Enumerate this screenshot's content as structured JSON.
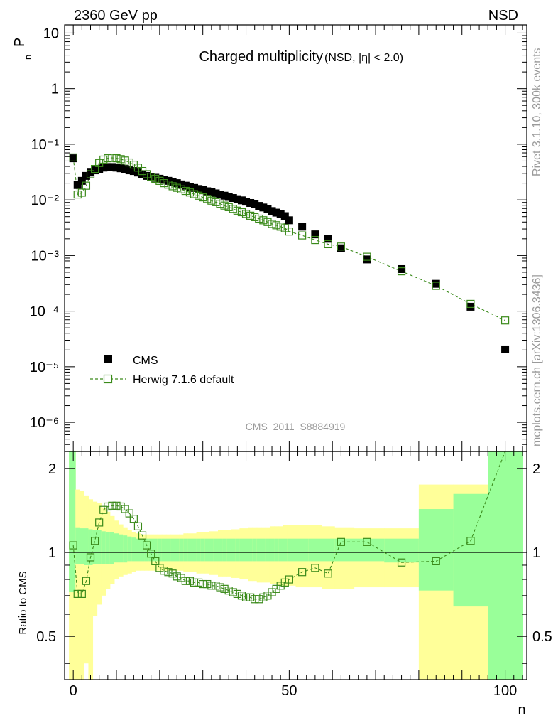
{
  "header": {
    "left": "2360 GeV pp",
    "right": "NSD"
  },
  "main_panel": {
    "title": "Charged multiplicity",
    "title_small": "(NSD, |η| < 2.0)",
    "ylabel": "P",
    "ylabel_sub": "n",
    "watermark": "CMS_2011_S8884919",
    "y_ticks": [
      {
        "value": 10,
        "label": "10"
      },
      {
        "value": 1,
        "label": "1"
      },
      {
        "value": 0.1,
        "label": "10⁻¹"
      },
      {
        "value": 0.01,
        "label": "10⁻²"
      },
      {
        "value": 0.001,
        "label": "10⁻³"
      },
      {
        "value": 0.0001,
        "label": "10⁻⁴"
      },
      {
        "value": 1e-05,
        "label": "10⁻⁵"
      },
      {
        "value": 1e-06,
        "label": "10⁻⁶"
      }
    ]
  },
  "ratio_panel": {
    "ylabel": "Ratio to CMS",
    "y_ticks": [
      {
        "value": 2,
        "label": "2"
      },
      {
        "value": 1,
        "label": "1"
      },
      {
        "value": 0.5,
        "label": "0.5"
      }
    ]
  },
  "x_axis": {
    "label": "n",
    "ticks": [
      {
        "value": 0,
        "label": "0"
      },
      {
        "value": 50,
        "label": "50"
      },
      {
        "value": 100,
        "label": "100"
      }
    ]
  },
  "legend": {
    "cms": "CMS",
    "herwig": "Herwig 7.1.6 default"
  },
  "side_text": {
    "rivet": "Rivet 3.1.10,  300k events",
    "mcplots": "mcplots.cern.ch [arXiv:1306.3436]"
  },
  "colors": {
    "cms": "#000000",
    "herwig": "#3a8a1a",
    "band_inner": "#99ff99",
    "band_outer": "#ffff99"
  },
  "chart_data": {
    "type": "scatter",
    "xlim": [
      -2,
      105
    ],
    "ylim_main": [
      3e-07,
      14
    ],
    "ylim_ratio": [
      0.35,
      2.3
    ],
    "log_y_main": true,
    "log_y_ratio": true,
    "x": [
      0,
      1,
      2,
      3,
      4,
      5,
      6,
      7,
      8,
      9,
      10,
      11,
      12,
      13,
      14,
      15,
      16,
      17,
      18,
      19,
      20,
      21,
      22,
      23,
      24,
      25,
      26,
      27,
      28,
      29,
      30,
      31,
      32,
      33,
      34,
      35,
      36,
      37,
      38,
      39,
      40,
      41,
      42,
      43,
      44,
      45,
      46,
      47,
      48,
      49,
      50,
      53,
      56,
      59,
      62,
      68,
      76,
      84,
      92,
      100
    ],
    "series": [
      {
        "name": "CMS",
        "values": [
          0.056,
          0.0185,
          0.022,
          0.027,
          0.031,
          0.034,
          0.036,
          0.038,
          0.039,
          0.039,
          0.038,
          0.037,
          0.036,
          0.034,
          0.033,
          0.031,
          0.029,
          0.027,
          0.026,
          0.025,
          0.024,
          0.023,
          0.022,
          0.021,
          0.02,
          0.019,
          0.018,
          0.0172,
          0.0164,
          0.0157,
          0.015,
          0.0143,
          0.0137,
          0.0131,
          0.0125,
          0.0119,
          0.0113,
          0.0108,
          0.0103,
          0.0098,
          0.0093,
          0.0088,
          0.0083,
          0.0078,
          0.0073,
          0.0068,
          0.0063,
          0.0059,
          0.0055,
          0.0051,
          0.0043,
          0.0033,
          0.0024,
          0.002,
          0.00135,
          0.00085,
          0.00057,
          0.00031,
          0.00012,
          2.05e-05
        ]
      },
      {
        "name": "Herwig 7.1.6 default",
        "values": [
          0.058,
          0.0125,
          0.0135,
          0.018,
          0.029,
          0.036,
          0.046,
          0.053,
          0.056,
          0.057,
          0.056,
          0.054,
          0.051,
          0.047,
          0.043,
          0.038,
          0.033,
          0.029,
          0.026,
          0.024,
          0.022,
          0.02,
          0.0188,
          0.0176,
          0.0165,
          0.0155,
          0.0145,
          0.0136,
          0.0127,
          0.0119,
          0.0111,
          0.0104,
          0.0097,
          0.0091,
          0.0085,
          0.0079,
          0.0074,
          0.0069,
          0.0064,
          0.006,
          0.0056,
          0.0052,
          0.0049,
          0.0046,
          0.0043,
          0.004,
          0.0037,
          0.0035,
          0.0033,
          0.0031,
          0.0027,
          0.0023,
          0.0019,
          0.0016,
          0.00145,
          0.00095,
          0.00052,
          0.000285,
          0.000135,
          6.8e-05
        ]
      }
    ],
    "ratio": [
      1.06,
      0.71,
      0.71,
      0.79,
      0.96,
      1.1,
      1.28,
      1.42,
      1.46,
      1.47,
      1.47,
      1.46,
      1.43,
      1.38,
      1.32,
      1.24,
      1.15,
      1.06,
      0.99,
      0.93,
      0.88,
      0.86,
      0.85,
      0.84,
      0.82,
      0.81,
      0.79,
      0.79,
      0.78,
      0.78,
      0.77,
      0.77,
      0.76,
      0.76,
      0.75,
      0.74,
      0.73,
      0.72,
      0.71,
      0.7,
      0.69,
      0.69,
      0.68,
      0.68,
      0.69,
      0.7,
      0.72,
      0.74,
      0.76,
      0.78,
      0.8,
      0.85,
      0.88,
      0.84,
      1.09,
      1.09,
      0.92,
      0.93,
      1.1,
      2.3
    ],
    "bands": {
      "edges": [
        -1,
        0.5,
        1.5,
        2.5,
        3.5,
        4.5,
        5.5,
        6.5,
        7.5,
        8.5,
        9.5,
        10.5,
        11.5,
        12.5,
        13.5,
        14.5,
        15.5,
        16.5,
        17.5,
        18.5,
        19.5,
        20.5,
        21.5,
        22.5,
        23.5,
        24.5,
        25.5,
        26.5,
        27.5,
        28.5,
        29.5,
        30.5,
        31.5,
        32.5,
        33.5,
        34.5,
        35.5,
        36.5,
        37.5,
        38.5,
        39.5,
        40.5,
        41.5,
        42.5,
        43.5,
        44.5,
        45.5,
        46.5,
        47.5,
        48.5,
        49.5,
        51.5,
        54.5,
        57.5,
        60.5,
        65,
        72,
        80,
        88,
        96,
        104
      ],
      "inner": [
        [
          0.72,
          2.3
        ],
        [
          0.91,
          1.23
        ],
        [
          0.91,
          1.22
        ],
        [
          0.9,
          1.22
        ],
        [
          0.9,
          1.21
        ],
        [
          0.91,
          1.2
        ],
        [
          0.91,
          1.2
        ],
        [
          0.91,
          1.19
        ],
        [
          0.91,
          1.18
        ],
        [
          0.91,
          1.18
        ],
        [
          0.92,
          1.17
        ],
        [
          0.92,
          1.16
        ],
        [
          0.92,
          1.15
        ],
        [
          0.93,
          1.14
        ],
        [
          0.93,
          1.13
        ],
        [
          0.93,
          1.12
        ],
        [
          0.93,
          1.12
        ],
        [
          0.93,
          1.12
        ],
        [
          0.93,
          1.12
        ],
        [
          0.93,
          1.12
        ],
        [
          0.93,
          1.12
        ],
        [
          0.93,
          1.12
        ],
        [
          0.93,
          1.12
        ],
        [
          0.93,
          1.12
        ],
        [
          0.93,
          1.12
        ],
        [
          0.93,
          1.12
        ],
        [
          0.93,
          1.12
        ],
        [
          0.93,
          1.12
        ],
        [
          0.93,
          1.12
        ],
        [
          0.93,
          1.12
        ],
        [
          0.93,
          1.12
        ],
        [
          0.93,
          1.12
        ],
        [
          0.93,
          1.12
        ],
        [
          0.93,
          1.12
        ],
        [
          0.93,
          1.12
        ],
        [
          0.93,
          1.12
        ],
        [
          0.93,
          1.12
        ],
        [
          0.93,
          1.12
        ],
        [
          0.93,
          1.12
        ],
        [
          0.93,
          1.12
        ],
        [
          0.93,
          1.12
        ],
        [
          0.93,
          1.12
        ],
        [
          0.93,
          1.12
        ],
        [
          0.93,
          1.12
        ],
        [
          0.93,
          1.12
        ],
        [
          0.93,
          1.12
        ],
        [
          0.93,
          1.12
        ],
        [
          0.93,
          1.12
        ],
        [
          0.93,
          1.12
        ],
        [
          0.93,
          1.12
        ],
        [
          0.93,
          1.12
        ],
        [
          0.93,
          1.12
        ],
        [
          0.93,
          1.12
        ],
        [
          0.93,
          1.12
        ],
        [
          0.93,
          1.12
        ],
        [
          0.93,
          1.12
        ],
        [
          0.92,
          1.12
        ],
        [
          0.73,
          1.43
        ],
        [
          0.64,
          1.62
        ],
        [
          0.35,
          2.3
        ],
        [
          0.35,
          2.3
        ]
      ],
      "outer": [
        [
          0.35,
          2.3
        ],
        [
          0.35,
          1.68
        ],
        [
          0.35,
          1.66
        ],
        [
          0.4,
          1.6
        ],
        [
          0.35,
          1.55
        ],
        [
          0.59,
          1.52
        ],
        [
          0.65,
          1.5
        ],
        [
          0.7,
          1.45
        ],
        [
          0.74,
          1.4
        ],
        [
          0.77,
          1.35
        ],
        [
          0.8,
          1.3
        ],
        [
          0.82,
          1.26
        ],
        [
          0.83,
          1.23
        ],
        [
          0.84,
          1.2
        ],
        [
          0.85,
          1.18
        ],
        [
          0.86,
          1.17
        ],
        [
          0.86,
          1.16
        ],
        [
          0.86,
          1.16
        ],
        [
          0.86,
          1.16
        ],
        [
          0.86,
          1.16
        ],
        [
          0.86,
          1.16
        ],
        [
          0.86,
          1.16
        ],
        [
          0.86,
          1.16
        ],
        [
          0.86,
          1.16
        ],
        [
          0.86,
          1.16
        ],
        [
          0.86,
          1.16
        ],
        [
          0.85,
          1.17
        ],
        [
          0.85,
          1.17
        ],
        [
          0.85,
          1.17
        ],
        [
          0.84,
          1.18
        ],
        [
          0.84,
          1.18
        ],
        [
          0.84,
          1.18
        ],
        [
          0.83,
          1.19
        ],
        [
          0.83,
          1.19
        ],
        [
          0.82,
          1.2
        ],
        [
          0.82,
          1.2
        ],
        [
          0.82,
          1.2
        ],
        [
          0.81,
          1.21
        ],
        [
          0.81,
          1.21
        ],
        [
          0.8,
          1.22
        ],
        [
          0.8,
          1.22
        ],
        [
          0.79,
          1.23
        ],
        [
          0.79,
          1.23
        ],
        [
          0.78,
          1.23
        ],
        [
          0.78,
          1.23
        ],
        [
          0.78,
          1.23
        ],
        [
          0.77,
          1.24
        ],
        [
          0.77,
          1.24
        ],
        [
          0.76,
          1.24
        ],
        [
          0.76,
          1.25
        ],
        [
          0.76,
          1.25
        ],
        [
          0.75,
          1.25
        ],
        [
          0.75,
          1.25
        ],
        [
          0.74,
          1.24
        ],
        [
          0.74,
          1.23
        ],
        [
          0.75,
          1.22
        ],
        [
          0.75,
          1.22
        ],
        [
          0.35,
          1.75
        ],
        [
          0.35,
          1.75
        ],
        [
          0.35,
          2.0
        ],
        [
          0.35,
          2.3
        ]
      ]
    }
  }
}
